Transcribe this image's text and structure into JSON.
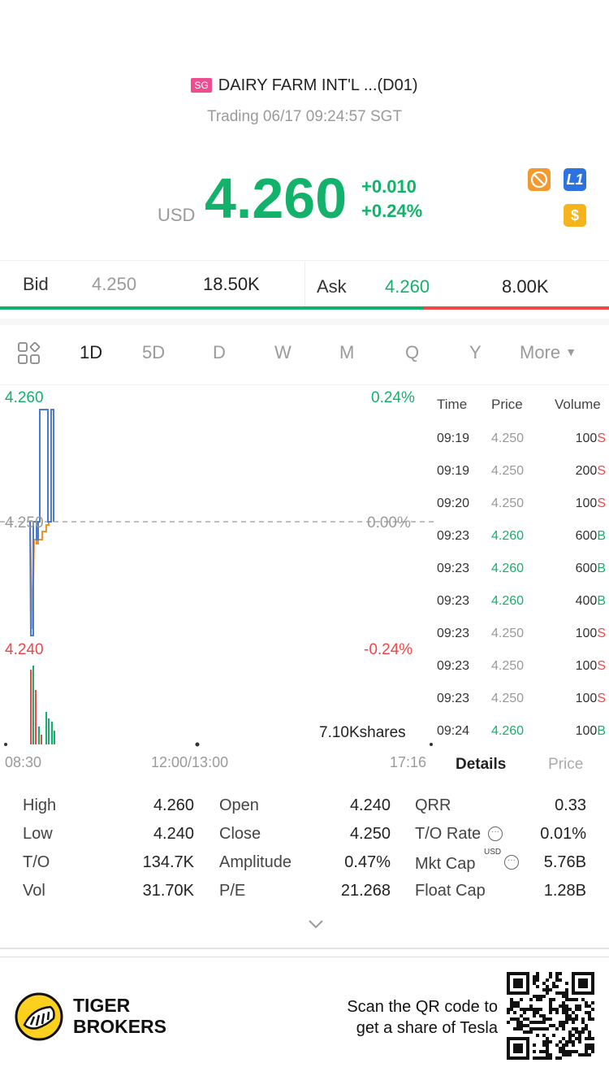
{
  "header": {
    "market_badge": "SG",
    "title": "DAIRY FARM INT'L ...(D01)",
    "status": "Trading 06/17 09:24:57 SGT",
    "currency": "USD",
    "price": "4.260",
    "change": "+0.010",
    "change_pct": "+0.24%",
    "badges": {
      "l1": "L1",
      "dollar": "$"
    }
  },
  "quote": {
    "bid_label": "Bid",
    "bid_price": "4.250",
    "bid_size": "18.50K",
    "ask_label": "Ask",
    "ask_price": "4.260",
    "ask_size": "8.00K",
    "bid_ratio": 0.696
  },
  "tabs": [
    "1D",
    "5D",
    "D",
    "W",
    "M",
    "Q",
    "Y"
  ],
  "more_label": "More",
  "chart": {
    "y_high": "4.260",
    "y_mid": "4.250",
    "y_low": "4.240",
    "pct_high": "0.24%",
    "pct_mid": "0.00%",
    "pct_low": "-0.24%",
    "volume_label": "7.10Kshares",
    "x_labels": [
      "08:30",
      "12:00/13:00",
      "17:16"
    ]
  },
  "trades": {
    "headers": {
      "time": "Time",
      "price": "Price",
      "volume": "Volume"
    },
    "rows": [
      {
        "time": "09:19",
        "price": "4.250",
        "vol": "100",
        "side": "S"
      },
      {
        "time": "09:19",
        "price": "4.250",
        "vol": "200",
        "side": "S"
      },
      {
        "time": "09:20",
        "price": "4.250",
        "vol": "100",
        "side": "S"
      },
      {
        "time": "09:23",
        "price": "4.260",
        "vol": "600",
        "side": "B"
      },
      {
        "time": "09:23",
        "price": "4.260",
        "vol": "600",
        "side": "B"
      },
      {
        "time": "09:23",
        "price": "4.260",
        "vol": "400",
        "side": "B"
      },
      {
        "time": "09:23",
        "price": "4.250",
        "vol": "100",
        "side": "S"
      },
      {
        "time": "09:23",
        "price": "4.250",
        "vol": "100",
        "side": "S"
      },
      {
        "time": "09:23",
        "price": "4.250",
        "vol": "100",
        "side": "S"
      },
      {
        "time": "09:24",
        "price": "4.260",
        "vol": "100",
        "side": "B"
      }
    ],
    "details_tab": "Details",
    "price_tab": "Price"
  },
  "stats": {
    "high_label": "High",
    "high": "4.260",
    "low_label": "Low",
    "low": "4.240",
    "to_label": "T/O",
    "to": "134.7K",
    "vol_label": "Vol",
    "vol": "31.70K",
    "open_label": "Open",
    "open": "4.240",
    "close_label": "Close",
    "close": "4.250",
    "amp_label": "Amplitude",
    "amp": "0.47%",
    "pe_label": "P/E",
    "pe": "21.268",
    "qrr_label": "QRR",
    "qrr": "0.33",
    "tor_label": "T/O Rate",
    "tor": "0.01%",
    "mktcap_label": "Mkt Cap",
    "mktcap_unit": "USD",
    "mktcap": "5.76B",
    "float_label": "Float Cap",
    "float": "1.28B"
  },
  "footer": {
    "brand_line1": "TIGER",
    "brand_line2": "BROKERS",
    "promo_line1": "Scan the QR code to",
    "promo_line2": "get a share of Tesla"
  },
  "colors": {
    "up": "#13b26a",
    "down": "#f04646",
    "line": "#4a7bd0",
    "avg": "#f0922a"
  }
}
